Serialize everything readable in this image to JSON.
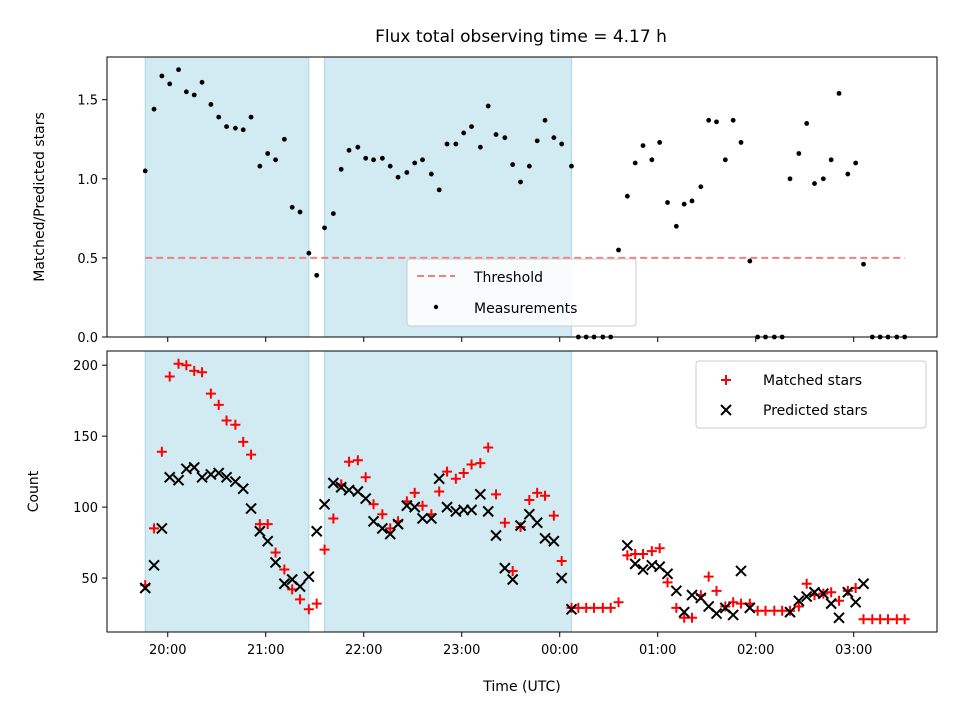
{
  "figure": {
    "title": "Flux total observing time = 4.17 h"
  },
  "chart_data": [
    {
      "type": "scatter",
      "ylabel": "Matched/Predicted stars",
      "xlabel": "",
      "xlim": [
        19.38,
        27.85
      ],
      "ylim": [
        0,
        1.77
      ],
      "yticks": [
        0.0,
        0.5,
        1.0,
        1.5
      ],
      "ytick_labels": [
        "0.0",
        "0.5",
        "1.0",
        "1.5"
      ],
      "xticks": [
        20,
        21,
        22,
        23,
        24,
        25,
        26,
        27
      ],
      "shaded_intervals": [
        [
          19.77,
          21.44
        ],
        [
          21.6,
          24.12
        ]
      ],
      "shade_color": "#add8e6",
      "threshold": {
        "name": "Threshold",
        "value": 0.5,
        "color": "#f08080",
        "style": "dashed"
      },
      "series": [
        {
          "name": "Measurements",
          "marker": "dot",
          "color": "#000000",
          "x": [
            19.77,
            19.86,
            19.94,
            20.02,
            20.11,
            20.19,
            20.27,
            20.35,
            20.44,
            20.52,
            20.6,
            20.69,
            20.77,
            20.85,
            20.94,
            21.02,
            21.1,
            21.19,
            21.27,
            21.35,
            21.44,
            21.52,
            21.6,
            21.69,
            21.77,
            21.85,
            21.94,
            22.02,
            22.1,
            22.19,
            22.27,
            22.35,
            22.44,
            22.52,
            22.6,
            22.69,
            22.77,
            22.85,
            22.94,
            23.02,
            23.1,
            23.19,
            23.27,
            23.35,
            23.44,
            23.52,
            23.6,
            23.69,
            23.77,
            23.85,
            23.94,
            24.02,
            24.12,
            24.19,
            24.27,
            24.35,
            24.44,
            24.52,
            24.6,
            24.69,
            24.77,
            24.85,
            24.94,
            25.02,
            25.1,
            25.19,
            25.27,
            25.35,
            25.44,
            25.52,
            25.6,
            25.69,
            25.77,
            25.85,
            25.94,
            26.02,
            26.1,
            26.19,
            26.27,
            26.35,
            26.44,
            26.52,
            26.6,
            26.69,
            26.77,
            26.85,
            26.94,
            27.02,
            27.1,
            27.19,
            27.27,
            27.35,
            27.44,
            27.52
          ],
          "y": [
            1.05,
            1.44,
            1.65,
            1.6,
            1.69,
            1.55,
            1.53,
            1.61,
            1.47,
            1.39,
            1.33,
            1.32,
            1.31,
            1.39,
            1.08,
            1.16,
            1.12,
            1.25,
            0.82,
            0.79,
            0.53,
            0.39,
            0.69,
            0.78,
            1.06,
            1.18,
            1.2,
            1.13,
            1.12,
            1.13,
            1.08,
            1.01,
            1.04,
            1.1,
            1.12,
            1.03,
            0.93,
            1.22,
            1.22,
            1.29,
            1.33,
            1.2,
            1.46,
            1.28,
            1.26,
            1.09,
            0.98,
            1.08,
            1.24,
            1.37,
            1.26,
            1.22,
            1.08,
            0.0,
            0.0,
            0.0,
            0.0,
            0.0,
            0.55,
            0.89,
            1.1,
            1.21,
            1.12,
            1.23,
            0.85,
            0.7,
            0.84,
            0.86,
            0.95,
            1.37,
            1.36,
            1.12,
            1.37,
            1.23,
            0.48,
            0.0,
            0.0,
            0.0,
            0.0,
            1.0,
            1.16,
            1.35,
            0.97,
            1.0,
            1.12,
            1.54,
            1.03,
            1.1,
            0.46,
            0.0,
            0.0,
            0.0,
            0.0,
            0.0
          ]
        }
      ],
      "legend": {
        "position": "lower-center",
        "entries": [
          "Threshold",
          "Measurements"
        ]
      }
    },
    {
      "type": "scatter",
      "xlabel": "Time (UTC)",
      "ylabel": "Count",
      "xlim": [
        19.38,
        27.85
      ],
      "ylim": [
        12,
        210
      ],
      "yticks": [
        50,
        100,
        150,
        200
      ],
      "ytick_labels": [
        "50",
        "100",
        "150",
        "200"
      ],
      "xticks": [
        20,
        21,
        22,
        23,
        24,
        25,
        26,
        27
      ],
      "xtick_labels": [
        "20:00",
        "21:00",
        "22:00",
        "23:00",
        "00:00",
        "01:00",
        "02:00",
        "03:00"
      ],
      "shaded_intervals": [
        [
          19.77,
          21.44
        ],
        [
          21.6,
          24.12
        ]
      ],
      "shade_color": "#add8e6",
      "series": [
        {
          "name": "Matched stars",
          "marker": "plus",
          "color": "#ff0000",
          "x": [
            19.77,
            19.86,
            19.94,
            20.02,
            20.11,
            20.19,
            20.27,
            20.35,
            20.44,
            20.52,
            20.6,
            20.69,
            20.77,
            20.85,
            20.94,
            21.02,
            21.1,
            21.19,
            21.27,
            21.35,
            21.44,
            21.52,
            21.6,
            21.69,
            21.77,
            21.85,
            21.94,
            22.02,
            22.1,
            22.19,
            22.27,
            22.35,
            22.44,
            22.52,
            22.6,
            22.69,
            22.77,
            22.85,
            22.94,
            23.02,
            23.1,
            23.19,
            23.27,
            23.35,
            23.44,
            23.52,
            23.6,
            23.69,
            23.77,
            23.85,
            23.94,
            24.02,
            24.12,
            24.19,
            24.27,
            24.35,
            24.44,
            24.52,
            24.6,
            24.69,
            24.77,
            24.85,
            24.94,
            25.02,
            25.1,
            25.19,
            25.27,
            25.35,
            25.44,
            25.52,
            25.6,
            25.69,
            25.77,
            25.85,
            25.94,
            26.02,
            26.1,
            26.19,
            26.27,
            26.35,
            26.44,
            26.52,
            26.6,
            26.69,
            26.77,
            26.85,
            26.94,
            27.02,
            27.1,
            27.19,
            27.27,
            27.35,
            27.44,
            27.52
          ],
          "y": [
            45,
            85,
            139,
            192,
            201,
            200,
            196,
            195,
            180,
            172,
            161,
            158,
            146,
            137,
            88,
            88,
            68,
            56,
            42,
            35,
            28,
            32,
            70,
            92,
            116,
            132,
            133,
            121,
            102,
            95,
            85,
            90,
            104,
            110,
            101,
            95,
            111,
            125,
            120,
            124,
            130,
            131,
            142,
            109,
            89,
            55,
            86,
            105,
            110,
            108,
            94,
            62,
            29,
            29,
            29,
            29,
            29,
            29,
            33,
            66,
            67,
            67,
            69,
            71,
            47,
            29,
            22,
            22,
            38,
            51,
            41,
            30,
            33,
            32,
            32,
            27,
            27,
            27,
            27,
            27,
            30,
            46,
            38,
            39,
            40,
            34,
            41,
            43,
            21,
            21,
            21,
            21,
            21,
            21
          ]
        },
        {
          "name": "Predicted stars",
          "marker": "x",
          "color": "#000000",
          "x": [
            19.77,
            19.86,
            19.94,
            20.02,
            20.11,
            20.19,
            20.27,
            20.35,
            20.44,
            20.52,
            20.6,
            20.69,
            20.77,
            20.85,
            20.94,
            21.02,
            21.1,
            21.19,
            21.27,
            21.35,
            21.44,
            21.52,
            21.6,
            21.69,
            21.77,
            21.85,
            21.94,
            22.02,
            22.1,
            22.19,
            22.27,
            22.35,
            22.44,
            22.52,
            22.6,
            22.69,
            22.77,
            22.85,
            22.94,
            23.02,
            23.1,
            23.19,
            23.27,
            23.35,
            23.44,
            23.52,
            23.6,
            23.69,
            23.77,
            23.85,
            23.94,
            24.02,
            24.12,
            24.69,
            24.77,
            24.85,
            24.94,
            25.02,
            25.1,
            25.19,
            25.27,
            25.35,
            25.44,
            25.52,
            25.6,
            25.69,
            25.77,
            25.85,
            25.94,
            26.35,
            26.44,
            26.52,
            26.6,
            26.69,
            26.77,
            26.85,
            26.94,
            27.02,
            27.1
          ],
          "y": [
            43,
            59,
            85,
            121,
            119,
            127,
            128,
            121,
            123,
            124,
            121,
            118,
            113,
            99,
            83,
            76,
            61,
            46,
            49,
            44,
            51,
            83,
            102,
            117,
            114,
            112,
            111,
            106,
            90,
            85,
            81,
            88,
            101,
            100,
            92,
            92,
            120,
            100,
            97,
            98,
            98,
            109,
            97,
            80,
            57,
            49,
            87,
            95,
            89,
            78,
            76,
            50,
            28,
            73,
            60,
            56,
            59,
            58,
            53,
            41,
            26,
            38,
            36,
            30,
            25,
            29,
            24,
            55,
            29,
            26,
            34,
            37,
            40,
            39,
            32,
            22,
            40,
            33,
            46
          ]
        }
      ],
      "legend": {
        "position": "upper-right",
        "entries": [
          "Matched stars",
          "Predicted stars"
        ]
      }
    }
  ]
}
